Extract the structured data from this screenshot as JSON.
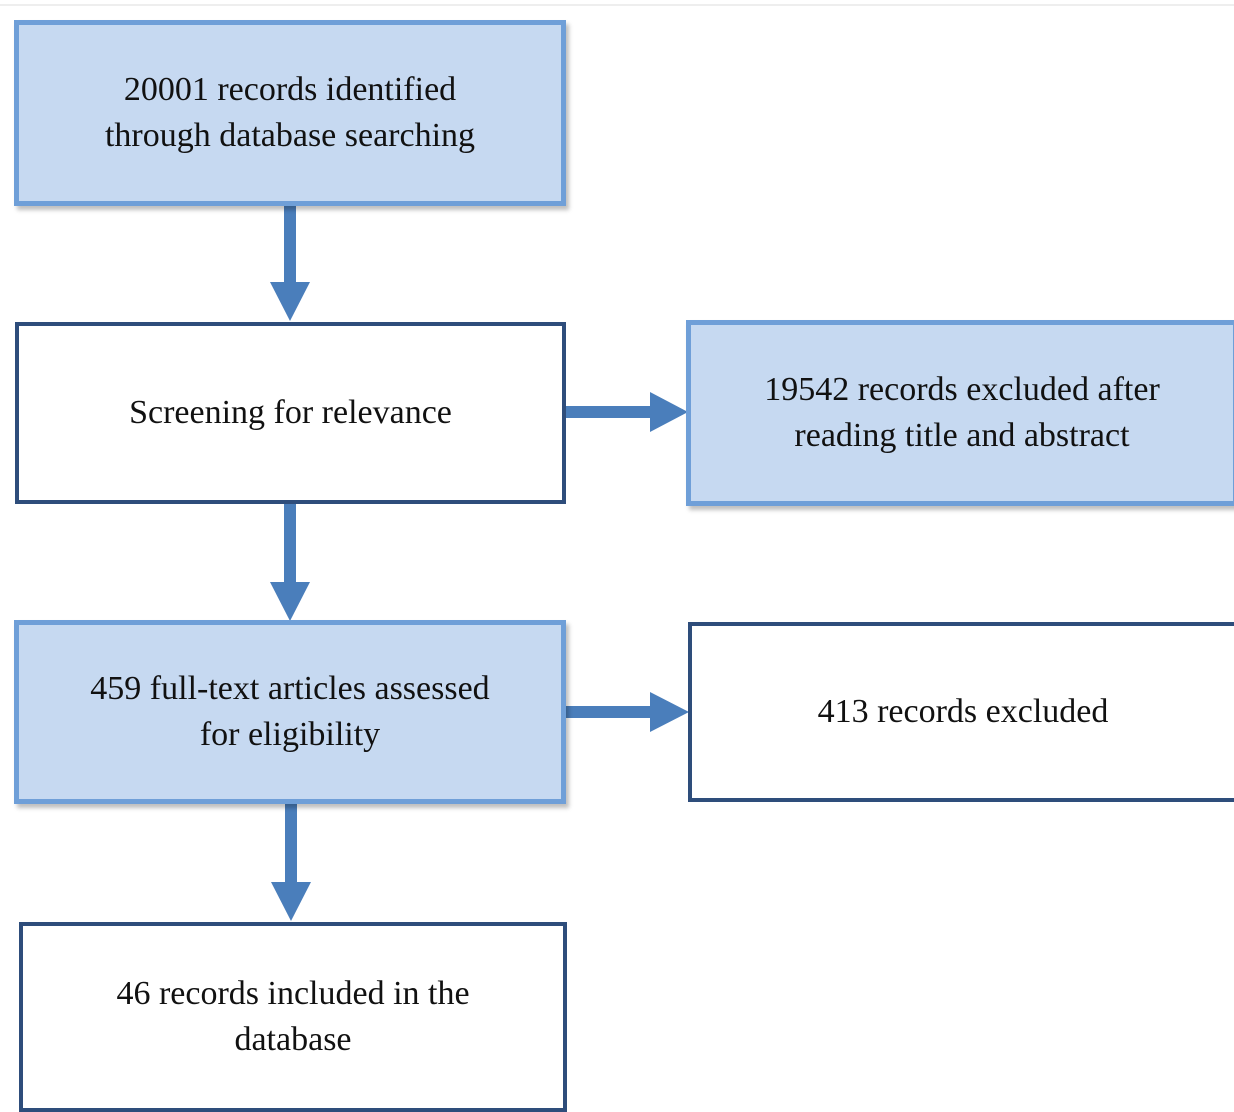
{
  "nodes": [
    {
      "lines": [
        "20001 records identified",
        "through database searching"
      ]
    },
    {
      "lines": [
        "Screening for relevance"
      ]
    },
    {
      "lines": [
        "19542 records excluded after",
        "reading title and abstract"
      ]
    },
    {
      "lines": [
        "459 full-text articles assessed",
        "for eligibility"
      ]
    },
    {
      "lines": [
        "413 records excluded"
      ]
    },
    {
      "lines": [
        "46 records included in the",
        "database"
      ]
    }
  ]
}
